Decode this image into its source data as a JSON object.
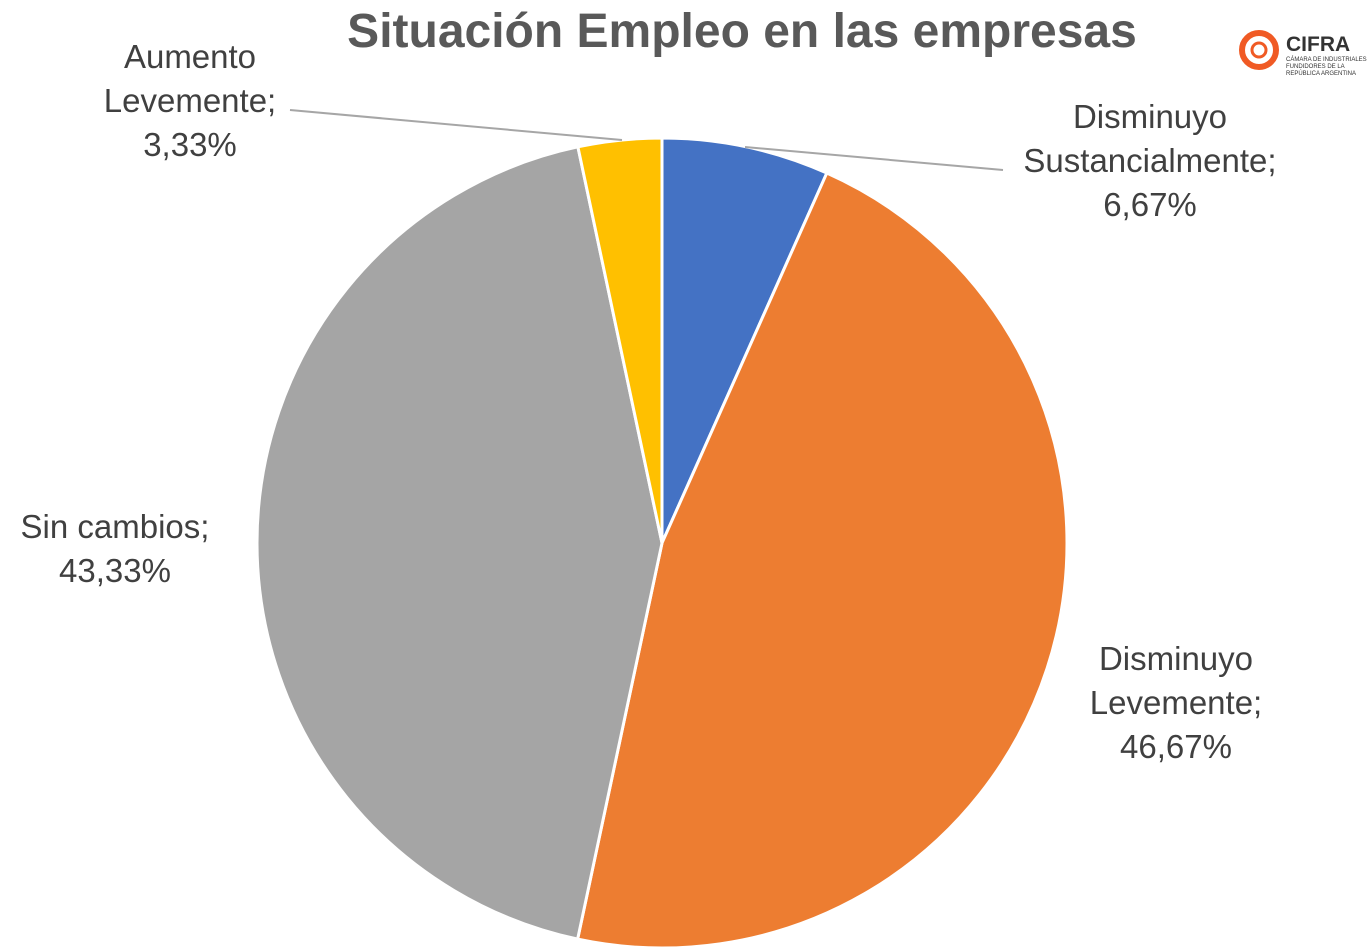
{
  "chart_data": {
    "type": "pie",
    "title": "Situación Empleo en las empresas",
    "categories": [
      "Disminuyo Sustancialmente",
      "Disminuyo Levemente",
      "Sin cambios",
      "Aumento Levemente"
    ],
    "values": [
      6.67,
      46.67,
      43.33,
      3.33
    ],
    "value_labels": [
      "6,67%",
      "46,67%",
      "43,33%",
      "3,33%"
    ],
    "label_separator": ";",
    "colors": [
      "#4472c4",
      "#ed7d31",
      "#a5a5a5",
      "#ffc000"
    ]
  },
  "logo": {
    "name": "CIFRA",
    "subtitle": "CÁMARA DE INDUSTRIALES FUNDIDORES DE LA REPÚBLICA ARGENTINA"
  }
}
